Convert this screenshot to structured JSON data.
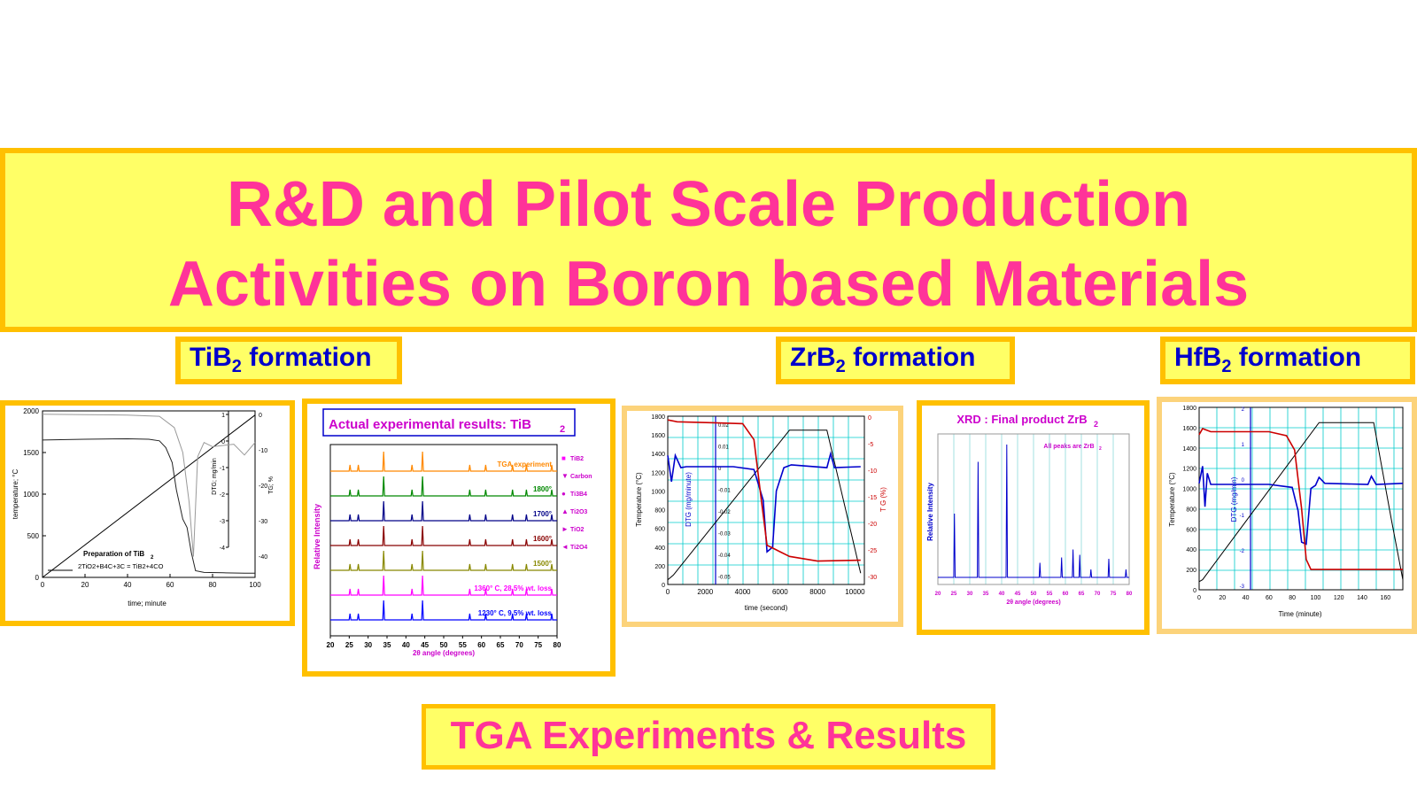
{
  "title": {
    "line1": "R&D and Pilot Scale Production",
    "line2": "Activities on Boron based Materials"
  },
  "labels": {
    "tib2": {
      "pre": "TiB",
      "sub": "2",
      "post": " formation"
    },
    "zrb2": {
      "pre": "ZrB",
      "sub": "2",
      "post": " formation"
    },
    "hfb2": {
      "pre": "HfB",
      "sub": "2",
      "post": " formation"
    }
  },
  "bottom_label": "TGA Experiments & Results",
  "colors": {
    "title": "#ff3399",
    "box_fill": "#ffff66",
    "box_border": "#ffc000",
    "label": "#0000cc"
  },
  "chart_data": [
    {
      "type": "line",
      "xlabel": "time; minute",
      "ylabel": "temperature; °C",
      "y2label": "DTG; mg/min",
      "y3label": "TG; %",
      "x_ticks": [
        0,
        20,
        40,
        60,
        80,
        100
      ],
      "y_ticks": [
        0,
        500,
        1000,
        1500,
        2000
      ],
      "y2_ticks": [
        1,
        0,
        -1,
        -2,
        -3,
        -4
      ],
      "y3_ticks": [
        0,
        -10,
        -20,
        -30,
        -40
      ],
      "xlim": [
        0,
        100
      ],
      "ylim": [
        0,
        2000
      ],
      "annotation_title": "Preparation of TiB",
      "annotation_title_sub": "2",
      "annotation_eq": "2TiO2+B4C+3C = TiB2+4CO",
      "series": [
        {
          "values_x": [
            0,
            100
          ],
          "values_y": [
            0,
            1950
          ]
        },
        {
          "values_x": [
            0,
            20,
            40,
            50,
            55,
            58,
            61,
            63,
            66,
            68,
            70,
            72,
            76,
            85,
            95,
            100
          ],
          "values_y": [
            1650,
            1660,
            1665,
            1660,
            1640,
            1560,
            1380,
            1050,
            700,
            600,
            300,
            80,
            60,
            55,
            50,
            50
          ]
        },
        {
          "values_x": [
            0,
            20,
            40,
            55,
            62,
            66,
            69,
            71,
            73,
            76,
            80,
            90,
            95,
            100
          ],
          "values_y": [
            1960,
            1955,
            1950,
            1935,
            1800,
            1500,
            900,
            250,
            1450,
            1620,
            1570,
            1600,
            1470,
            1620
          ]
        }
      ]
    },
    {
      "type": "line",
      "title": "Actual experimental results: TiB",
      "title_sub": "2",
      "xlabel": "2θ angle (degrees)",
      "ylabel": "Relative Intensity",
      "x_ticks": [
        20,
        25,
        30,
        35,
        40,
        45,
        50,
        55,
        60,
        65,
        70,
        75,
        80
      ],
      "xlim": [
        20,
        80
      ],
      "peaks": [
        25.2,
        27.4,
        34.1,
        41.6,
        44.4,
        56.9,
        61.1,
        68.2,
        71.9,
        78.6
      ],
      "legend": [
        "TiB2",
        "Carbon",
        "Ti3B4",
        "Ti2O3",
        "TiO2",
        "Ti2O4"
      ],
      "legend_symbols": [
        "■",
        "▼",
        "●",
        "▲",
        "►",
        "◄"
      ],
      "legend_colors": [
        "#ff00ff",
        "#cc00cc",
        "#cc00cc",
        "#cc00cc",
        "#cc00cc",
        "#cc00cc"
      ],
      "series": [
        {
          "name": "TGA experiment",
          "color": "#ff8800"
        },
        {
          "name": "1800°",
          "color": "#008800"
        },
        {
          "name": "1700°",
          "color": "#000088"
        },
        {
          "name": "1600°",
          "color": "#880000"
        },
        {
          "name": "1500°",
          "color": "#888800"
        },
        {
          "name": "1360° C, 28.5% wt. loss",
          "color": "#ff00ff"
        },
        {
          "name": "1230° C, 9.5% wt. loss",
          "color": "#0000ff"
        }
      ]
    },
    {
      "type": "line",
      "xlabel": "time (second)",
      "ylabel": "Temperature (°C)",
      "y2label": "DTG (mg/minute)",
      "y3label": "T G (%)",
      "x_ticks": [
        0,
        2000,
        4000,
        6000,
        8000,
        10000
      ],
      "y_ticks": [
        0,
        200,
        400,
        600,
        800,
        1000,
        1200,
        1400,
        1600,
        1800
      ],
      "y2_ticks": [
        0.02,
        0.01,
        0,
        -0.01,
        -0.02,
        -0.03,
        -0.04,
        -0.05
      ],
      "y3_ticks": [
        0,
        -5,
        -10,
        -15,
        -20,
        -25,
        -30
      ],
      "xlim": [
        0,
        10500
      ],
      "ylim": [
        0,
        1800
      ],
      "series": [
        {
          "color": "#000000",
          "values_x": [
            0,
            300,
            6500,
            8500,
            10300
          ],
          "values_y": [
            50,
            100,
            1650,
            1650,
            120
          ]
        },
        {
          "color": "#0000cc",
          "values_x": [
            0,
            200,
            400,
            700,
            1000,
            3500,
            4600,
            5100,
            5300,
            5600,
            5800,
            6200,
            6600,
            8500,
            8700,
            8900,
            10300
          ],
          "values_y": [
            1380,
            1100,
            1380,
            1250,
            1260,
            1260,
            1230,
            900,
            350,
            400,
            1000,
            1250,
            1280,
            1250,
            1400,
            1250,
            1260
          ]
        },
        {
          "color": "#cc0000",
          "values_x": [
            0,
            500,
            2500,
            4000,
            4600,
            5000,
            5300,
            5700,
            6000,
            6500,
            8000,
            10300
          ],
          "values_y": [
            1760,
            1740,
            1730,
            1720,
            1550,
            900,
            420,
            380,
            350,
            300,
            250,
            260
          ]
        }
      ]
    },
    {
      "type": "line",
      "title": "XRD : Final product ZrB",
      "title_sub": "2",
      "annotation": "All peaks are ZrB",
      "annotation_sub": "2",
      "xlabel": "2θ angle (degrees)",
      "ylabel": "Relative Intensity",
      "x_ticks": [
        20,
        25,
        30,
        35,
        40,
        45,
        50,
        55,
        60,
        65,
        70,
        75,
        80
      ],
      "xlim": [
        20,
        80
      ],
      "peaks": [
        {
          "x": 25.2,
          "h": 0.48
        },
        {
          "x": 32.6,
          "h": 0.87
        },
        {
          "x": 41.6,
          "h": 1.0
        },
        {
          "x": 52.0,
          "h": 0.11
        },
        {
          "x": 58.8,
          "h": 0.15
        },
        {
          "x": 62.4,
          "h": 0.21
        },
        {
          "x": 64.5,
          "h": 0.17
        },
        {
          "x": 68.0,
          "h": 0.06
        },
        {
          "x": 73.6,
          "h": 0.14
        },
        {
          "x": 79.0,
          "h": 0.06
        }
      ]
    },
    {
      "type": "line",
      "xlabel": "Time (minute)",
      "ylabel": "Temperature (°C)",
      "y2label": "DTG (mg/min)",
      "x_ticks": [
        0,
        20,
        40,
        60,
        80,
        100,
        120,
        140,
        160
      ],
      "y_ticks": [
        0,
        200,
        400,
        600,
        800,
        1000,
        1200,
        1400,
        1600,
        1800
      ],
      "y2_ticks": [
        2,
        1,
        0,
        -1,
        -2,
        -3
      ],
      "xlim": [
        0,
        175
      ],
      "ylim": [
        0,
        1800
      ],
      "series": [
        {
          "color": "#000000",
          "values_x": [
            0,
            3,
            103,
            150,
            165,
            175
          ],
          "values_y": [
            80,
            100,
            1650,
            1650,
            700,
            100
          ]
        },
        {
          "color": "#0000cc",
          "values_x": [
            0,
            3,
            5,
            7,
            10,
            60,
            80,
            85,
            88,
            92,
            96,
            100,
            103,
            108,
            145,
            148,
            152,
            175
          ],
          "values_y": [
            1050,
            1220,
            820,
            1150,
            1040,
            1040,
            1010,
            780,
            470,
            450,
            1000,
            1030,
            1110,
            1050,
            1040,
            1120,
            1040,
            1050
          ]
        },
        {
          "color": "#cc0000",
          "values_x": [
            0,
            3,
            10,
            60,
            75,
            82,
            88,
            92,
            96,
            110,
            140,
            175
          ],
          "values_y": [
            1530,
            1590,
            1560,
            1560,
            1520,
            1380,
            800,
            300,
            200,
            200,
            200,
            200
          ]
        }
      ]
    }
  ]
}
